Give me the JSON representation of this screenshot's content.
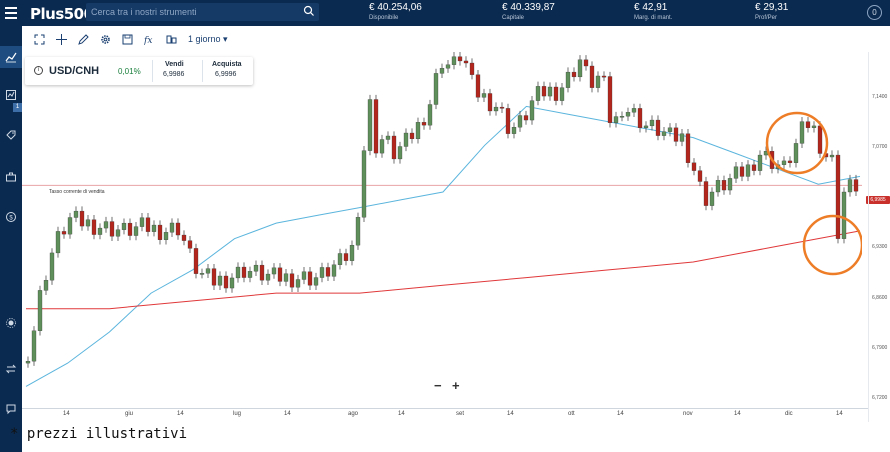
{
  "topbar": {
    "logo": "Plus500",
    "search_placeholder": "Cerca tra i nostri strumenti",
    "stats": [
      {
        "value": "€ 40.254,06",
        "label": "Disponibile"
      },
      {
        "value": "€ 40.339,87",
        "label": "Capitale"
      },
      {
        "value": "€ 42,91",
        "label": "Marg. di mant."
      },
      {
        "value": "€ 29,31",
        "label": "Prof/Per"
      }
    ],
    "info": "0"
  },
  "sidebar": {
    "badge": "1"
  },
  "toolbar": {
    "period": "1 giorno ▾"
  },
  "instrument": {
    "symbol": "USD/CNH",
    "change": "0,01%",
    "sell_label": "Vendi",
    "sell_value": "6,9986",
    "buy_label": "Acquista",
    "buy_value": "6,9996"
  },
  "chart": {
    "reference_label": "Tasso corrente di vendita",
    "current_price": "6,9985",
    "zoom_out": "−",
    "zoom_in": "+",
    "footnote": "* prezzi illustrativi"
  },
  "chart_data": {
    "type": "line",
    "title": "",
    "series": [
      {
        "name": "",
        "values": [
          6.74,
          6.77,
          6.81,
          6.86,
          6.89,
          6.93,
          6.95,
          6.96,
          6.97,
          6.98,
          6.99,
          7.05,
          7.1,
          7.09,
          7.08,
          7.07,
          7.06,
          7.04,
          7.02,
          7.0,
          7.01
        ]
      },
      {
        "name": "",
        "values": [
          6.84,
          6.84,
          6.85,
          6.86,
          6.86,
          6.87,
          6.88,
          6.89,
          6.9,
          6.92,
          6.94
        ]
      }
    ],
    "x_tick_labels": [
      "14",
      "giu",
      "14",
      "lug",
      "14",
      "ago",
      "14",
      "set",
      "14",
      "ott",
      "14",
      "nov",
      "14",
      "dic",
      "14"
    ],
    "y_tick_labels": [
      "7,1400",
      "7,0700",
      "6,9985",
      "6,9300",
      "6,8600",
      "6,7900",
      "6,7200"
    ],
    "ylim": [
      6.72,
      7.17
    ],
    "grid": false
  },
  "colors": {
    "navy": "#0b2a4f",
    "bull": "#5f8f5a",
    "bear": "#b3261e",
    "ma_fast": "#5bb5dd",
    "ma_slow": "#e0383a",
    "highlight": "#ee7d27"
  }
}
